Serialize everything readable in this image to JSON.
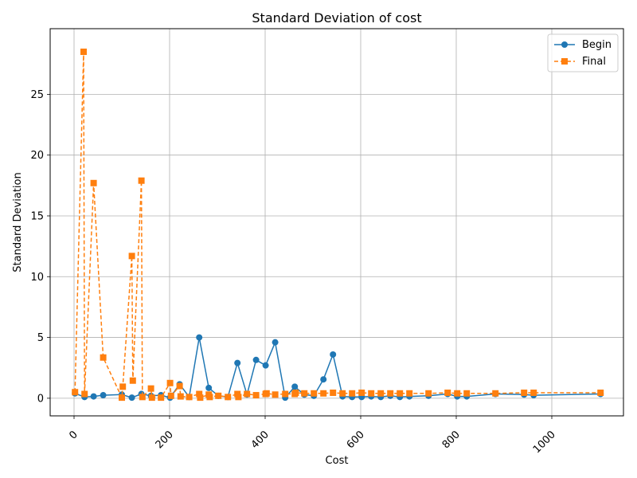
{
  "chart_data": {
    "type": "line",
    "title": "Standard Deviation of cost",
    "xlabel": "Cost",
    "ylabel": "Standard Deviation",
    "xlim": [
      -50,
      1150
    ],
    "ylim": [
      -1.45,
      30.4
    ],
    "xticks": [
      0,
      200,
      400,
      600,
      800,
      1000
    ],
    "yticks": [
      0,
      5,
      10,
      15,
      20,
      25
    ],
    "grid": true,
    "legend_position": "top-right",
    "series": [
      {
        "name": "Begin",
        "color": "#1f77b4",
        "line_style": "solid",
        "marker": "circle",
        "x": [
          2,
          22,
          41,
          61,
          100,
          121,
          141,
          161,
          182,
          201,
          221,
          241,
          262,
          282,
          302,
          322,
          342,
          362,
          381,
          401,
          421,
          442,
          462,
          482,
          502,
          522,
          542,
          562,
          582,
          602,
          622,
          642,
          662,
          682,
          702,
          742,
          782,
          802,
          822,
          882,
          942,
          962,
          1102
        ],
        "y": [
          0.4,
          0.1,
          0.15,
          0.25,
          0.3,
          0.05,
          0.35,
          0.2,
          0.25,
          0.05,
          1.15,
          0.1,
          5.0,
          0.85,
          0.2,
          0.1,
          2.9,
          0.3,
          3.15,
          2.7,
          4.6,
          0.05,
          0.95,
          0.3,
          0.2,
          1.55,
          3.6,
          0.15,
          0.1,
          0.1,
          0.15,
          0.1,
          0.2,
          0.1,
          0.15,
          0.2,
          0.35,
          0.15,
          0.15,
          0.35,
          0.3,
          0.25,
          0.35
        ]
      },
      {
        "name": "Final",
        "color": "#ff7f0e",
        "line_style": "dashed",
        "marker": "square",
        "x": [
          2,
          20,
          22,
          41,
          61,
          100,
          102,
          121,
          123,
          141,
          143,
          161,
          163,
          182,
          201,
          203,
          221,
          223,
          241,
          262,
          264,
          282,
          284,
          302,
          322,
          342,
          344,
          362,
          381,
          401,
          403,
          421,
          442,
          462,
          464,
          482,
          502,
          522,
          542,
          562,
          582,
          602,
          622,
          642,
          662,
          682,
          702,
          742,
          782,
          802,
          822,
          882,
          942,
          962,
          1102
        ],
        "y": [
          0.5,
          28.5,
          0.35,
          17.7,
          3.35,
          0.05,
          0.95,
          11.7,
          1.45,
          17.9,
          0.1,
          0.8,
          0.05,
          0.05,
          1.25,
          0.2,
          1.0,
          0.15,
          0.1,
          0.35,
          0.05,
          0.3,
          0.1,
          0.2,
          0.1,
          0.35,
          0.1,
          0.35,
          0.25,
          0.35,
          0.4,
          0.3,
          0.35,
          0.35,
          0.45,
          0.4,
          0.4,
          0.4,
          0.45,
          0.4,
          0.4,
          0.45,
          0.4,
          0.4,
          0.4,
          0.4,
          0.4,
          0.4,
          0.45,
          0.4,
          0.4,
          0.4,
          0.45,
          0.45,
          0.45
        ]
      }
    ]
  }
}
